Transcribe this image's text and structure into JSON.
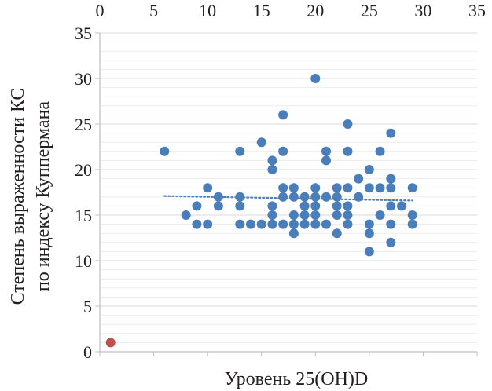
{
  "chart_data": {
    "type": "scatter",
    "title": "",
    "xlabel": "Уровень 25(OH)D",
    "ylabel_line1": "Степень выраженности КС",
    "ylabel_line2": "по индексу Куппермана",
    "xlim": [
      0,
      35
    ],
    "ylim": [
      0,
      35
    ],
    "x_ticks": [
      0,
      5,
      10,
      15,
      20,
      25,
      30,
      35
    ],
    "y_ticks": [
      0,
      5,
      10,
      15,
      20,
      25,
      30,
      35
    ],
    "x_ticks_position": "top",
    "grid": "horizontal",
    "series": [
      {
        "color": "#4a7ebb",
        "marker": "circle",
        "points": [
          [
            6,
            22
          ],
          [
            8,
            15
          ],
          [
            9,
            16
          ],
          [
            9,
            14
          ],
          [
            10,
            18
          ],
          [
            10,
            14
          ],
          [
            11,
            17
          ],
          [
            11,
            16
          ],
          [
            13,
            22
          ],
          [
            13,
            17
          ],
          [
            13,
            16
          ],
          [
            13,
            14
          ],
          [
            14,
            14
          ],
          [
            15,
            23
          ],
          [
            15,
            14
          ],
          [
            16,
            21
          ],
          [
            16,
            20
          ],
          [
            16,
            16
          ],
          [
            16,
            15
          ],
          [
            16,
            14
          ],
          [
            17,
            26
          ],
          [
            17,
            22
          ],
          [
            17,
            18
          ],
          [
            17,
            17
          ],
          [
            17,
            14
          ],
          [
            18,
            18
          ],
          [
            18,
            17
          ],
          [
            18,
            15
          ],
          [
            18,
            14
          ],
          [
            18,
            13
          ],
          [
            19,
            17
          ],
          [
            19,
            16
          ],
          [
            19,
            15
          ],
          [
            19,
            14
          ],
          [
            20,
            30
          ],
          [
            20,
            18
          ],
          [
            20,
            17
          ],
          [
            20,
            16
          ],
          [
            20,
            15
          ],
          [
            20,
            14
          ],
          [
            21,
            22
          ],
          [
            21,
            21
          ],
          [
            21,
            17
          ],
          [
            21,
            14
          ],
          [
            22,
            18
          ],
          [
            22,
            17
          ],
          [
            22,
            16
          ],
          [
            22,
            15
          ],
          [
            22,
            13
          ],
          [
            23,
            25
          ],
          [
            23,
            22
          ],
          [
            23,
            18
          ],
          [
            23,
            16
          ],
          [
            23,
            15
          ],
          [
            23,
            14
          ],
          [
            24,
            19
          ],
          [
            24,
            17
          ],
          [
            25,
            20
          ],
          [
            25,
            18
          ],
          [
            25,
            14
          ],
          [
            25,
            13
          ],
          [
            25,
            11
          ],
          [
            26,
            22
          ],
          [
            26,
            18
          ],
          [
            26,
            15
          ],
          [
            27,
            24
          ],
          [
            27,
            19
          ],
          [
            27,
            18
          ],
          [
            27,
            16
          ],
          [
            27,
            14
          ],
          [
            27,
            12
          ],
          [
            28,
            16
          ],
          [
            29,
            18
          ],
          [
            29,
            15
          ],
          [
            29,
            14
          ]
        ]
      },
      {
        "color": "#c0504d",
        "marker": "circle",
        "points": [
          [
            1,
            1
          ]
        ]
      }
    ],
    "trendline": {
      "style": "dotted",
      "color": "#4a7ebb",
      "x_range": [
        6,
        29
      ],
      "y_start": 17.1,
      "y_end": 16.6
    }
  }
}
